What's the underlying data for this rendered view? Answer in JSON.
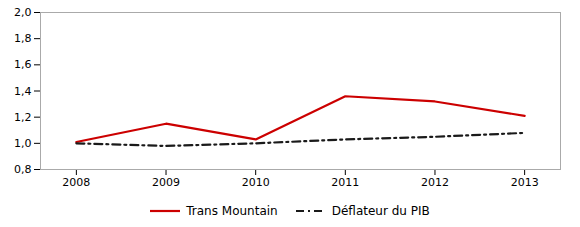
{
  "chart_data": {
    "type": "line",
    "x": [
      2008,
      2009,
      2010,
      2011,
      2012,
      2013
    ],
    "xlim": [
      2007.6,
      2013.4
    ],
    "xticks": [
      2008,
      2009,
      2010,
      2011,
      2012,
      2013
    ],
    "ylim": [
      0.8,
      2.0
    ],
    "yticks": [
      {
        "value": 0.8,
        "label": "0,8"
      },
      {
        "value": 1.0,
        "label": "1,0"
      },
      {
        "value": 1.2,
        "label": "1,2"
      },
      {
        "value": 1.4,
        "label": "1,4"
      },
      {
        "value": 1.6,
        "label": "1,6"
      },
      {
        "value": 1.8,
        "label": "1,8"
      },
      {
        "value": 2.0,
        "label": "2,0"
      }
    ],
    "grid": false,
    "legend": "bottom",
    "series": [
      {
        "name": "Trans Mountain",
        "color": "#cc0000",
        "line_style": "solid",
        "values": [
          1.01,
          1.15,
          1.03,
          1.36,
          1.32,
          1.21
        ]
      },
      {
        "name": "Déflateur du PIB",
        "color": "#1a1a1a",
        "line_style": "dashdot",
        "values": [
          1.0,
          0.98,
          1.0,
          1.03,
          1.05,
          1.08
        ]
      }
    ]
  }
}
